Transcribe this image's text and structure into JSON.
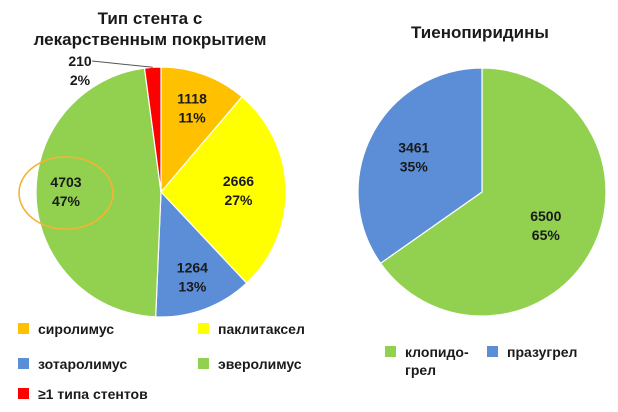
{
  "colors": {
    "yellow_orange": "#FFC000",
    "yellow": "#FFFF00",
    "blue": "#5B8ED6",
    "green": "#92D050",
    "red": "#FF0000",
    "highlight_ring": "#F5B335"
  },
  "chart_data": [
    {
      "type": "pie",
      "title": "Тип стента с лекарственным покрытием",
      "slices": [
        {
          "name": "сиролимус",
          "value": 1118,
          "percent": "11%",
          "color": "#FFC000"
        },
        {
          "name": "паклитаксел",
          "value": 2666,
          "percent": "27%",
          "color": "#FFFF00"
        },
        {
          "name": "зотаролимус",
          "value": 1264,
          "percent": "13%",
          "color": "#5B8ED6"
        },
        {
          "name": "эверолимус",
          "value": 4703,
          "percent": "47%",
          "color": "#92D050",
          "highlighted": true
        },
        {
          "name": "≥1 типа стентов",
          "value": 210,
          "percent": "2%",
          "color": "#FF0000"
        }
      ],
      "legend": [
        {
          "label": "сиролимус",
          "color": "#FFC000"
        },
        {
          "label": "паклитаксел",
          "color": "#FFFF00"
        },
        {
          "label": "зотаролимус",
          "color": "#5B8ED6"
        },
        {
          "label": "эверолимус",
          "color": "#92D050"
        },
        {
          "label": "≥1 типа стентов",
          "color": "#FF0000"
        }
      ],
      "legend_placement": "bottom"
    },
    {
      "type": "pie",
      "title": "Тиенопиридины",
      "slices": [
        {
          "name": "клопидогрел",
          "value": 6500,
          "percent": "65%",
          "color": "#92D050"
        },
        {
          "name": "празугрел",
          "value": 3461,
          "percent": "35%",
          "color": "#5B8ED6"
        }
      ],
      "legend": [
        {
          "label": "клопидо-\nгрел",
          "color": "#92D050"
        },
        {
          "label": "празугрел",
          "color": "#5B8ED6"
        }
      ],
      "legend_placement": "bottom"
    }
  ]
}
